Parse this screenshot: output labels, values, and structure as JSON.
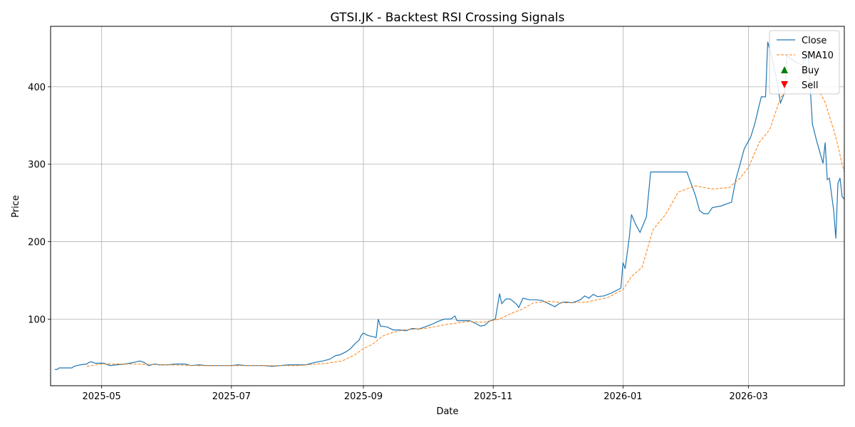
{
  "chart_data": {
    "type": "line",
    "title": "GTSI.JK - Backtest RSI Crossing Signals",
    "xlabel": "Date",
    "ylabel": "Price",
    "xlim": [
      "2025-04-07",
      "2026-04-15"
    ],
    "ylim": [
      14,
      478
    ],
    "x_ticks": [
      {
        "date": "2025-05-01",
        "label": "2025-05"
      },
      {
        "date": "2025-07-01",
        "label": "2025-07"
      },
      {
        "date": "2025-09-01",
        "label": "2025-09"
      },
      {
        "date": "2025-11-01",
        "label": "2025-11"
      },
      {
        "date": "2026-01-01",
        "label": "2026-01"
      },
      {
        "date": "2026-03-01",
        "label": "2026-03"
      }
    ],
    "y_ticks": [
      100,
      200,
      300,
      400
    ],
    "grid": true,
    "legend_position": "top-right",
    "legend": [
      "Close",
      "SMA10",
      "Buy",
      "Sell"
    ],
    "colors": {
      "close": "#1f77b4",
      "sma": "#ff7f0e",
      "buy": "#008000",
      "sell": "#ff0000"
    },
    "series": [
      {
        "name": "Close",
        "style": "solid",
        "points": [
          [
            "2025-04-09",
            35
          ],
          [
            "2025-04-10",
            35
          ],
          [
            "2025-04-11",
            37
          ],
          [
            "2025-04-14",
            37
          ],
          [
            "2025-04-17",
            37
          ],
          [
            "2025-04-18",
            39
          ],
          [
            "2025-04-21",
            41
          ],
          [
            "2025-04-24",
            42
          ],
          [
            "2025-04-25",
            44
          ],
          [
            "2025-04-26",
            45
          ],
          [
            "2025-04-28",
            43
          ],
          [
            "2025-04-30",
            43
          ],
          [
            "2025-05-02",
            43
          ],
          [
            "2025-05-05",
            40
          ],
          [
            "2025-05-08",
            41
          ],
          [
            "2025-05-12",
            42
          ],
          [
            "2025-05-16",
            44
          ],
          [
            "2025-05-19",
            46
          ],
          [
            "2025-05-21",
            44
          ],
          [
            "2025-05-23",
            40
          ],
          [
            "2025-05-26",
            42
          ],
          [
            "2025-05-28",
            41
          ],
          [
            "2025-06-01",
            41
          ],
          [
            "2025-06-05",
            42
          ],
          [
            "2025-06-09",
            42
          ],
          [
            "2025-06-12",
            40
          ],
          [
            "2025-06-16",
            41
          ],
          [
            "2025-06-19",
            40
          ],
          [
            "2025-06-23",
            40
          ],
          [
            "2025-06-27",
            40
          ],
          [
            "2025-07-01",
            40
          ],
          [
            "2025-07-04",
            41
          ],
          [
            "2025-07-08",
            40
          ],
          [
            "2025-07-12",
            40
          ],
          [
            "2025-07-16",
            40
          ],
          [
            "2025-07-20",
            39
          ],
          [
            "2025-07-24",
            40
          ],
          [
            "2025-07-28",
            41
          ],
          [
            "2025-08-01",
            41
          ],
          [
            "2025-08-05",
            41
          ],
          [
            "2025-08-09",
            44
          ],
          [
            "2025-08-13",
            46
          ],
          [
            "2025-08-16",
            48
          ],
          [
            "2025-08-19",
            53
          ],
          [
            "2025-08-21",
            54
          ],
          [
            "2025-08-24",
            58
          ],
          [
            "2025-08-26",
            62
          ],
          [
            "2025-08-28",
            68
          ],
          [
            "2025-08-30",
            73
          ],
          [
            "2025-08-31",
            79
          ],
          [
            "2025-09-01",
            82
          ],
          [
            "2025-09-03",
            79
          ],
          [
            "2025-09-06",
            77
          ],
          [
            "2025-09-07",
            76
          ],
          [
            "2025-09-08",
            100
          ],
          [
            "2025-09-09",
            91
          ],
          [
            "2025-09-12",
            90
          ],
          [
            "2025-09-15",
            86
          ],
          [
            "2025-09-18",
            86
          ],
          [
            "2025-09-21",
            85
          ],
          [
            "2025-09-24",
            88
          ],
          [
            "2025-09-27",
            87
          ],
          [
            "2025-09-30",
            90
          ],
          [
            "2025-10-03",
            93
          ],
          [
            "2025-10-06",
            97
          ],
          [
            "2025-10-09",
            100
          ],
          [
            "2025-10-12",
            100
          ],
          [
            "2025-10-14",
            104
          ],
          [
            "2025-10-15",
            98
          ],
          [
            "2025-10-18",
            98
          ],
          [
            "2025-10-21",
            98
          ],
          [
            "2025-10-24",
            94
          ],
          [
            "2025-10-26",
            91
          ],
          [
            "2025-10-28",
            92
          ],
          [
            "2025-10-30",
            97
          ],
          [
            "2025-11-02",
            100
          ],
          [
            "2025-11-04",
            133
          ],
          [
            "2025-11-05",
            120
          ],
          [
            "2025-11-07",
            126
          ],
          [
            "2025-11-09",
            126
          ],
          [
            "2025-11-12",
            119
          ],
          [
            "2025-11-13",
            115
          ],
          [
            "2025-11-15",
            127
          ],
          [
            "2025-11-18",
            125
          ],
          [
            "2025-11-21",
            125
          ],
          [
            "2025-11-24",
            124
          ],
          [
            "2025-11-27",
            120
          ],
          [
            "2025-11-30",
            116
          ],
          [
            "2025-12-02",
            120
          ],
          [
            "2025-12-04",
            122
          ],
          [
            "2025-12-06",
            122
          ],
          [
            "2025-12-08",
            121
          ],
          [
            "2025-12-10",
            123
          ],
          [
            "2025-12-12",
            125
          ],
          [
            "2025-12-14",
            130
          ],
          [
            "2025-12-16",
            127
          ],
          [
            "2025-12-18",
            132
          ],
          [
            "2025-12-20",
            129
          ],
          [
            "2025-12-23",
            130
          ],
          [
            "2025-12-26",
            133
          ],
          [
            "2025-12-29",
            137
          ],
          [
            "2025-12-31",
            140
          ],
          [
            "2026-01-01",
            173
          ],
          [
            "2026-01-02",
            165
          ],
          [
            "2026-01-04",
            207
          ],
          [
            "2026-01-05",
            235
          ],
          [
            "2026-01-07",
            222
          ],
          [
            "2026-01-09",
            212
          ],
          [
            "2026-01-12",
            232
          ],
          [
            "2026-01-14",
            290
          ],
          [
            "2026-01-22",
            290
          ],
          [
            "2026-01-27",
            290
          ],
          [
            "2026-01-31",
            290
          ],
          [
            "2026-02-04",
            260
          ],
          [
            "2026-02-06",
            240
          ],
          [
            "2026-02-08",
            236
          ],
          [
            "2026-02-10",
            236
          ],
          [
            "2026-02-12",
            244
          ],
          [
            "2026-02-16",
            246
          ],
          [
            "2026-02-19",
            249
          ],
          [
            "2026-02-21",
            251
          ],
          [
            "2026-02-23",
            280
          ],
          [
            "2026-02-25",
            300
          ],
          [
            "2026-02-27",
            320
          ],
          [
            "2026-03-02",
            335
          ],
          [
            "2026-03-04",
            353
          ],
          [
            "2026-03-06",
            376
          ],
          [
            "2026-03-07",
            387
          ],
          [
            "2026-03-09",
            387
          ],
          [
            "2026-03-10",
            458
          ],
          [
            "2026-03-12",
            437
          ],
          [
            "2026-03-14",
            412
          ],
          [
            "2026-03-16",
            379
          ],
          [
            "2026-03-18",
            393
          ],
          [
            "2026-03-19",
            440
          ],
          [
            "2026-03-23",
            432
          ],
          [
            "2026-03-26",
            428
          ],
          [
            "2026-03-28",
            436
          ],
          [
            "2026-03-29",
            445
          ],
          [
            "2026-03-31",
            352
          ],
          [
            "2026-04-02",
            330
          ],
          [
            "2026-04-05",
            301
          ],
          [
            "2026-04-06",
            328
          ],
          [
            "2026-04-07",
            280
          ],
          [
            "2026-04-08",
            282
          ],
          [
            "2026-04-10",
            240
          ],
          [
            "2026-04-11",
            204
          ],
          [
            "2026-04-12",
            275
          ],
          [
            "2026-04-13",
            282
          ],
          [
            "2026-04-14",
            258
          ],
          [
            "2026-04-15",
            255
          ]
        ]
      },
      {
        "name": "SMA10",
        "style": "dashed",
        "points": [
          [
            "2025-04-24",
            39
          ],
          [
            "2025-05-01",
            42
          ],
          [
            "2025-05-15",
            42
          ],
          [
            "2025-06-01",
            41
          ],
          [
            "2025-06-15",
            40
          ],
          [
            "2025-07-01",
            40
          ],
          [
            "2025-07-15",
            40
          ],
          [
            "2025-08-01",
            40
          ],
          [
            "2025-08-15",
            43
          ],
          [
            "2025-08-22",
            46
          ],
          [
            "2025-08-28",
            54
          ],
          [
            "2025-09-01",
            62
          ],
          [
            "2025-09-05",
            67
          ],
          [
            "2025-09-10",
            78
          ],
          [
            "2025-09-15",
            83
          ],
          [
            "2025-09-20",
            86
          ],
          [
            "2025-09-25",
            87
          ],
          [
            "2025-09-30",
            88
          ],
          [
            "2025-10-10",
            93
          ],
          [
            "2025-10-20",
            97
          ],
          [
            "2025-10-27",
            96
          ],
          [
            "2025-11-04",
            100
          ],
          [
            "2025-11-09",
            107
          ],
          [
            "2025-11-14",
            112
          ],
          [
            "2025-11-20",
            121
          ],
          [
            "2025-11-27",
            123
          ],
          [
            "2025-12-05",
            121
          ],
          [
            "2025-12-15",
            122
          ],
          [
            "2025-12-25",
            128
          ],
          [
            "2026-01-01",
            138
          ],
          [
            "2026-01-05",
            155
          ],
          [
            "2026-01-10",
            167
          ],
          [
            "2026-01-15",
            215
          ],
          [
            "2026-01-21",
            235
          ],
          [
            "2026-01-27",
            264
          ],
          [
            "2026-02-04",
            272
          ],
          [
            "2026-02-12",
            268
          ],
          [
            "2026-02-20",
            270
          ],
          [
            "2026-02-25",
            282
          ],
          [
            "2026-03-01",
            296
          ],
          [
            "2026-03-06",
            328
          ],
          [
            "2026-03-11",
            345
          ],
          [
            "2026-03-16",
            386
          ],
          [
            "2026-03-21",
            400
          ],
          [
            "2026-03-27",
            418
          ],
          [
            "2026-04-01",
            405
          ],
          [
            "2026-04-06",
            380
          ],
          [
            "2026-04-11",
            335
          ],
          [
            "2026-04-14",
            300
          ],
          [
            "2026-04-15",
            290
          ]
        ]
      }
    ],
    "buy_signals": [],
    "sell_signals": []
  }
}
